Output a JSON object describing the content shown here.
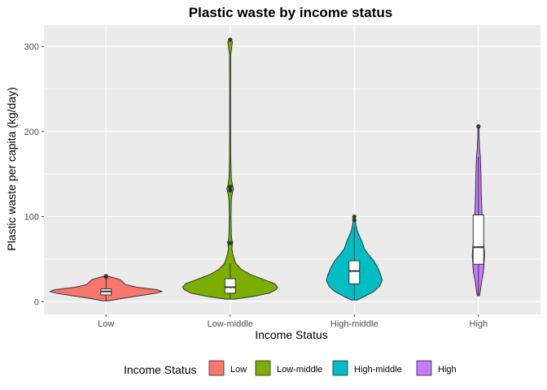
{
  "chart_data": {
    "type": "violin",
    "title": "Plastic waste by income status",
    "xlabel": "Income Status",
    "ylabel": "Plastic waste per capita (kg/day)",
    "categories": [
      "Low",
      "Low-middle",
      "High-middle",
      "High"
    ],
    "ylim": [
      -15,
      325
    ],
    "yticks": [
      0,
      100,
      200,
      300
    ],
    "grid": true,
    "legend": {
      "title": "Income Status",
      "position": "bottom"
    },
    "colors": [
      "#F8766D",
      "#7CAE00",
      "#00BFC4",
      "#C77CFF"
    ],
    "series": [
      {
        "name": "Low",
        "profile": [
          [
            1,
            0.05
          ],
          [
            4,
            0.3
          ],
          [
            7,
            0.6
          ],
          [
            10,
            0.9
          ],
          [
            12,
            1.0
          ],
          [
            14,
            0.92
          ],
          [
            17,
            0.55
          ],
          [
            20,
            0.35
          ],
          [
            23,
            0.3
          ],
          [
            26,
            0.25
          ],
          [
            28,
            0.14
          ],
          [
            30,
            0.03
          ]
        ],
        "box": {
          "q1": 8,
          "median": 12,
          "q3": 15,
          "whisker_low": 1,
          "whisker_high": 28
        },
        "outliers": [
          29,
          30
        ]
      },
      {
        "name": "Low-middle",
        "profile": [
          [
            3,
            0.08
          ],
          [
            6,
            0.4
          ],
          [
            10,
            0.7
          ],
          [
            14,
            0.82
          ],
          [
            17,
            0.85
          ],
          [
            21,
            0.8
          ],
          [
            26,
            0.6
          ],
          [
            32,
            0.36
          ],
          [
            38,
            0.2
          ],
          [
            45,
            0.1
          ],
          [
            55,
            0.05
          ],
          [
            62,
            0.03
          ],
          [
            68,
            0.04
          ],
          [
            70,
            0.05
          ],
          [
            72,
            0.03
          ],
          [
            80,
            0.02
          ],
          [
            100,
            0.015
          ],
          [
            120,
            0.02
          ],
          [
            128,
            0.04
          ],
          [
            133,
            0.06
          ],
          [
            137,
            0.04
          ],
          [
            145,
            0.02
          ],
          [
            170,
            0.01
          ],
          [
            200,
            0.008
          ],
          [
            250,
            0.008
          ],
          [
            290,
            0.01
          ],
          [
            300,
            0.03
          ],
          [
            305,
            0.04
          ],
          [
            308,
            0.02
          ]
        ],
        "box": {
          "q1": 10,
          "median": 17,
          "q3": 27,
          "whisker_low": 3,
          "whisker_high": 45
        },
        "outliers": [
          69,
          131,
          135,
          308
        ]
      },
      {
        "name": "High-middle",
        "profile": [
          [
            2,
            0.05
          ],
          [
            6,
            0.18
          ],
          [
            12,
            0.35
          ],
          [
            18,
            0.45
          ],
          [
            25,
            0.5
          ],
          [
            32,
            0.47
          ],
          [
            40,
            0.42
          ],
          [
            48,
            0.35
          ],
          [
            55,
            0.26
          ],
          [
            62,
            0.18
          ],
          [
            70,
            0.14
          ],
          [
            76,
            0.1
          ],
          [
            82,
            0.06
          ],
          [
            90,
            0.03
          ],
          [
            96,
            0.02
          ],
          [
            100,
            0.02
          ]
        ],
        "box": {
          "q1": 21,
          "median": 36,
          "q3": 48,
          "whisker_low": 2,
          "whisker_high": 88
        },
        "outliers": [
          96,
          100
        ]
      },
      {
        "name": "High",
        "profile": [
          [
            7,
            0.02
          ],
          [
            15,
            0.04
          ],
          [
            25,
            0.06
          ],
          [
            35,
            0.09
          ],
          [
            45,
            0.1
          ],
          [
            55,
            0.11
          ],
          [
            65,
            0.1
          ],
          [
            75,
            0.08
          ],
          [
            85,
            0.07
          ],
          [
            95,
            0.07
          ],
          [
            110,
            0.06
          ],
          [
            130,
            0.05
          ],
          [
            150,
            0.045
          ],
          [
            170,
            0.035
          ],
          [
            180,
            0.02
          ],
          [
            190,
            0.015
          ],
          [
            200,
            0.01
          ],
          [
            206,
            0.01
          ]
        ],
        "box": {
          "q1": 44,
          "median": 64,
          "q3": 102,
          "whisker_low": 7,
          "whisker_high": 170
        },
        "outliers": [
          206
        ]
      }
    ]
  }
}
